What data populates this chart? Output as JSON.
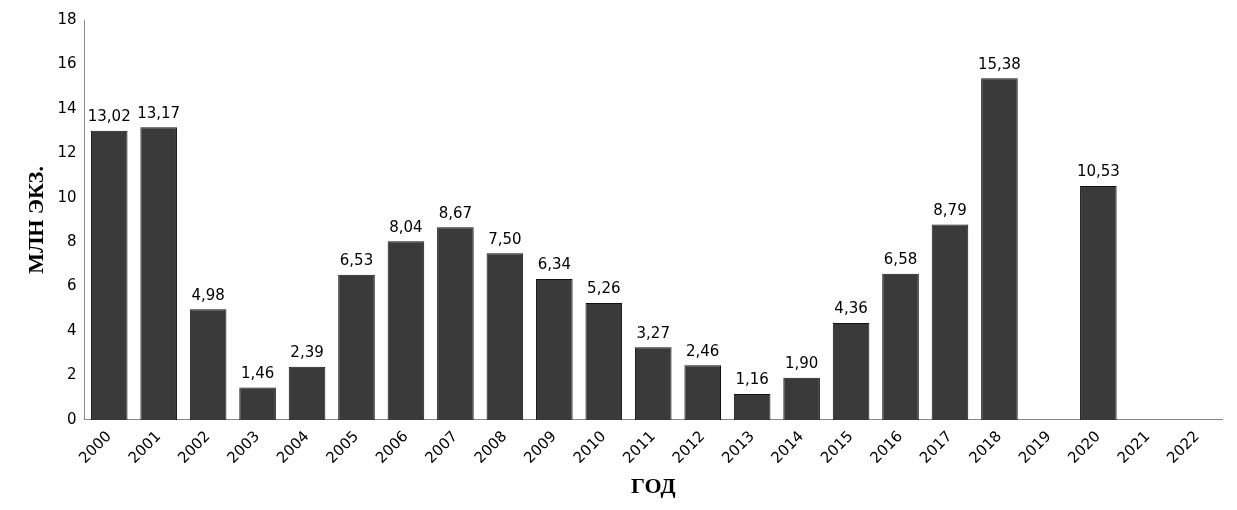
{
  "chart_data": {
    "type": "bar",
    "xlabel": "ГОД",
    "ylabel": "МЛН ЭКЗ.",
    "categories": [
      "2000",
      "2001",
      "2002",
      "2003",
      "2004",
      "2005",
      "2006",
      "2007",
      "2008",
      "2009",
      "2010",
      "2011",
      "2012",
      "2013",
      "2014",
      "2015",
      "2016",
      "2017",
      "2018",
      "2019",
      "2020",
      "2021",
      "2022"
    ],
    "values": [
      13.02,
      13.17,
      4.98,
      1.46,
      2.39,
      6.53,
      8.04,
      8.67,
      7.5,
      6.34,
      5.26,
      3.27,
      2.46,
      1.16,
      1.9,
      4.36,
      6.58,
      8.79,
      15.38,
      null,
      10.53,
      null,
      null
    ],
    "value_labels": [
      "13,02",
      "13,17",
      "4,98",
      "1,46",
      "2,39",
      "6,53",
      "8,04",
      "8,67",
      "7,50",
      "6,34",
      "5,26",
      "3,27",
      "2,46",
      "1,16",
      "1,90",
      "4,36",
      "6,58",
      "8,79",
      "15,38",
      null,
      "10,53",
      null,
      null
    ],
    "color": "#3a3a3a",
    "ylim": [
      0,
      18
    ],
    "yticks": [
      0,
      2,
      4,
      6,
      8,
      10,
      12,
      14,
      16,
      18
    ],
    "grid": false,
    "legend": false
  }
}
